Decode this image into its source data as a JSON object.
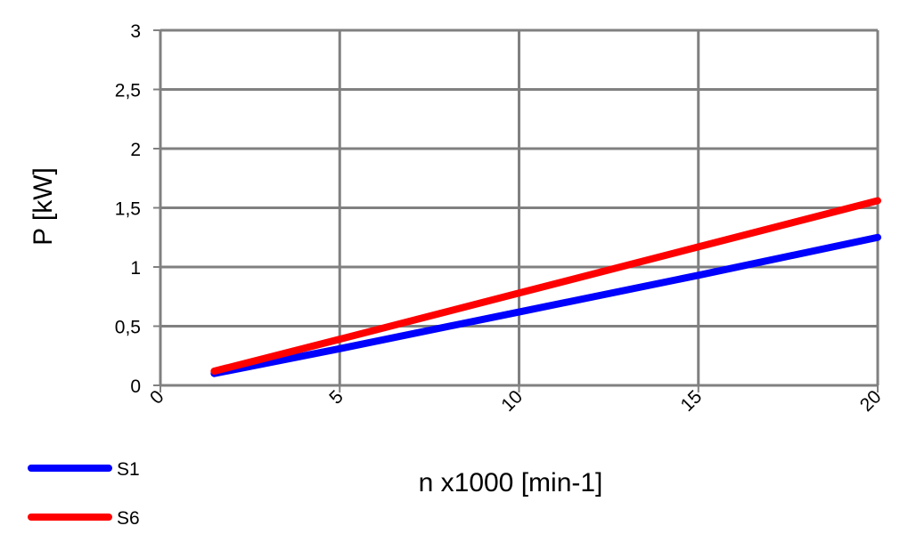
{
  "chart_data": {
    "type": "line",
    "xlabel": "n x1000 [min-1]",
    "ylabel": "P [kW]",
    "xlim": [
      0,
      20
    ],
    "ylim": [
      0,
      3
    ],
    "x_ticks": [
      "0",
      "5",
      "10",
      "15",
      "20"
    ],
    "y_ticks": [
      "0",
      "0,5",
      "1",
      "1,5",
      "2",
      "2,5",
      "3"
    ],
    "grid": true,
    "legend_position": "bottom-left",
    "series": [
      {
        "name": "S1",
        "color": "#0000ff",
        "x": [
          1.5,
          5,
          10,
          15,
          20
        ],
        "y": [
          0.1,
          0.31,
          0.62,
          0.93,
          1.25
        ]
      },
      {
        "name": "S6",
        "color": "#ff0000",
        "x": [
          1.5,
          5,
          10,
          15,
          20
        ],
        "y": [
          0.12,
          0.39,
          0.78,
          1.17,
          1.56
        ]
      }
    ]
  }
}
